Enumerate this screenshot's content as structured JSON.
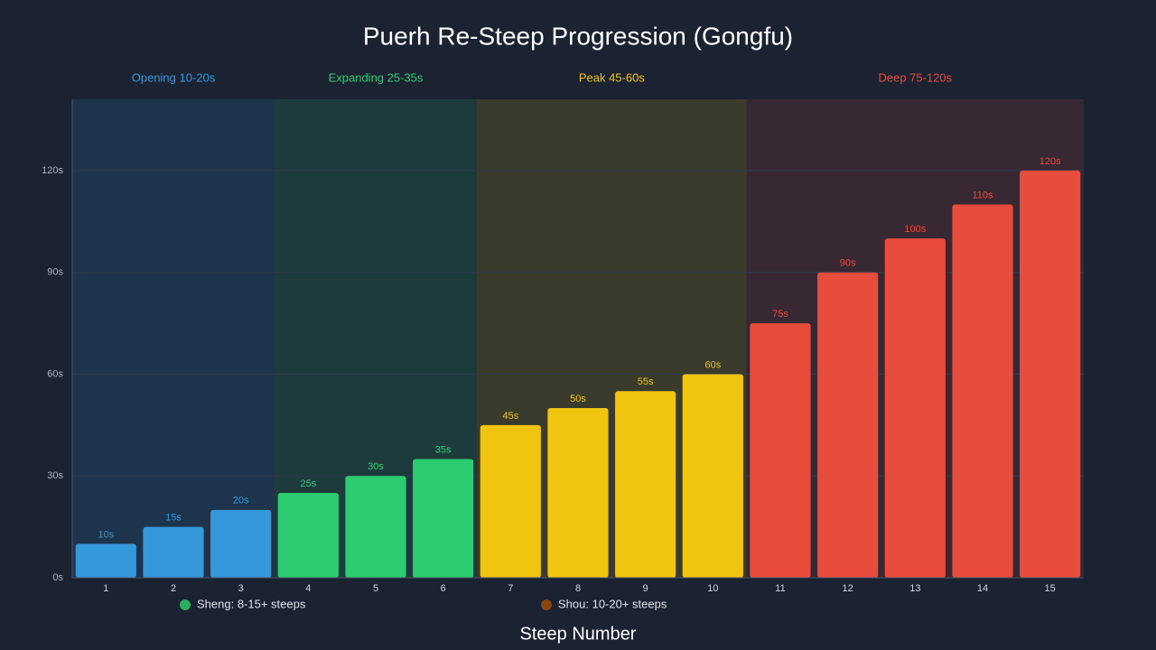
{
  "chart_data": {
    "type": "bar",
    "title": "Puerh Re-Steep Progression (Gongfu)",
    "x_label": "Steep Number",
    "categories": [
      "1",
      "2",
      "3",
      "4",
      "5",
      "6",
      "7",
      "8",
      "9",
      "10",
      "11",
      "12",
      "13",
      "14",
      "15"
    ],
    "values": [
      10,
      15,
      20,
      25,
      30,
      35,
      45,
      50,
      55,
      60,
      75,
      90,
      100,
      110,
      120
    ],
    "value_labels": [
      "10s",
      "15s",
      "20s",
      "25s",
      "30s",
      "35s",
      "45s",
      "50s",
      "55s",
      "60s",
      "75s",
      "90s",
      "100s",
      "110s",
      "120s"
    ],
    "ylim": [
      0,
      141
    ],
    "yticks": [
      {
        "value": 0,
        "label": "0s"
      },
      {
        "value": 30,
        "label": "30s"
      },
      {
        "value": 60,
        "label": "60s"
      },
      {
        "value": 90,
        "label": "90s"
      },
      {
        "value": 120,
        "label": "120s"
      }
    ],
    "grid": true,
    "phases": [
      {
        "label": "Opening 10-20s",
        "color": "#3498db",
        "range": [
          "1",
          "3"
        ]
      },
      {
        "label": "Expanding 25-35s",
        "color": "#2ecc71",
        "range": [
          "4",
          "6"
        ]
      },
      {
        "label": "Peak 45-60s",
        "color": "#f1c40f",
        "range": [
          "7",
          "10"
        ]
      },
      {
        "label": "Deep 75-120s",
        "color": "#e74c3c",
        "range": [
          "11",
          "15"
        ]
      }
    ],
    "legend": [
      {
        "label": "Sheng: 8-15+ steeps",
        "color": "#27ae60"
      },
      {
        "label": "Shou: 10-20+ steeps",
        "color": "#8b4513"
      }
    ]
  }
}
